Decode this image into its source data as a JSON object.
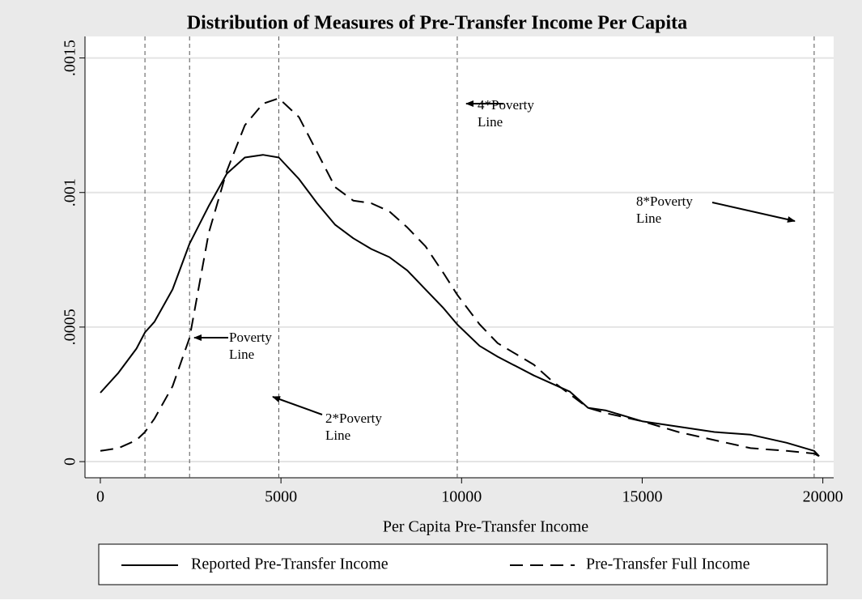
{
  "chart_data": {
    "type": "line",
    "title": "Distribution of Measures of Pre-Transfer Income Per Capita",
    "x_label": "Per Capita Pre-Transfer Income",
    "x": [
      0,
      500,
      1000,
      1235,
      1500,
      2000,
      2470,
      3000,
      3500,
      4000,
      4500,
      4940,
      5500,
      6000,
      6500,
      7000,
      7500,
      8000,
      8500,
      9000,
      9500,
      9880,
      10500,
      11000,
      12000,
      12500,
      13000,
      13500,
      14000,
      15000,
      16000,
      17000,
      18000,
      19000,
      19760,
      19900
    ],
    "series": [
      {
        "name": "Reported Pre-Transfer Income",
        "color": "#000000",
        "dash": "solid",
        "values": [
          0.000256,
          0.00033,
          0.00042,
          0.00048,
          0.00052,
          0.00064,
          0.00081,
          0.00095,
          0.00107,
          0.00113,
          0.00114,
          0.00113,
          0.00105,
          0.00096,
          0.00088,
          0.00083,
          0.00079,
          0.00076,
          0.00071,
          0.00064,
          0.00057,
          0.00051,
          0.00043,
          0.00039,
          0.00032,
          0.00029,
          0.00026,
          0.0002,
          0.00019,
          0.00015,
          0.00013,
          0.00011,
          0.0001,
          7e-05,
          4e-05,
          2e-05
        ]
      },
      {
        "name": "Pre-Transfer Full Income",
        "color": "#000000",
        "dash": "dashed",
        "values": [
          4e-05,
          5e-05,
          8e-05,
          0.00011,
          0.00016,
          0.00028,
          0.00046,
          0.00085,
          0.00108,
          0.00125,
          0.00133,
          0.00135,
          0.00128,
          0.00115,
          0.00102,
          0.00097,
          0.00096,
          0.00093,
          0.00087,
          0.0008,
          0.0007,
          0.00062,
          0.00051,
          0.00044,
          0.00036,
          0.0003,
          0.00025,
          0.0002,
          0.00018,
          0.00015,
          0.00011,
          8e-05,
          5e-05,
          4e-05,
          3e-05,
          2e-05
        ]
      }
    ],
    "reference_lines": [
      1235,
      2470,
      4940,
      9880,
      19760
    ],
    "annotations": [
      {
        "text": [
          "Poverty",
          "Line"
        ]
      },
      {
        "text": [
          "2*Poverty",
          "Line"
        ]
      },
      {
        "text": [
          "4*Poverty",
          "Line"
        ]
      },
      {
        "text": [
          "8*Poverty",
          "Line"
        ]
      }
    ],
    "xlim": [
      -425,
      20300
    ],
    "xticks": [
      0,
      5000,
      10000,
      15000,
      20000
    ],
    "ylim": [
      -6e-05,
      0.00158
    ],
    "yticks": [
      0,
      {
        "value": 0.0005,
        "label": ".0005"
      },
      {
        "value": 0.001,
        "label": ".001"
      },
      {
        "value": 0.0015,
        "label": ".0015"
      }
    ],
    "grid": true,
    "legend": "bottom"
  }
}
